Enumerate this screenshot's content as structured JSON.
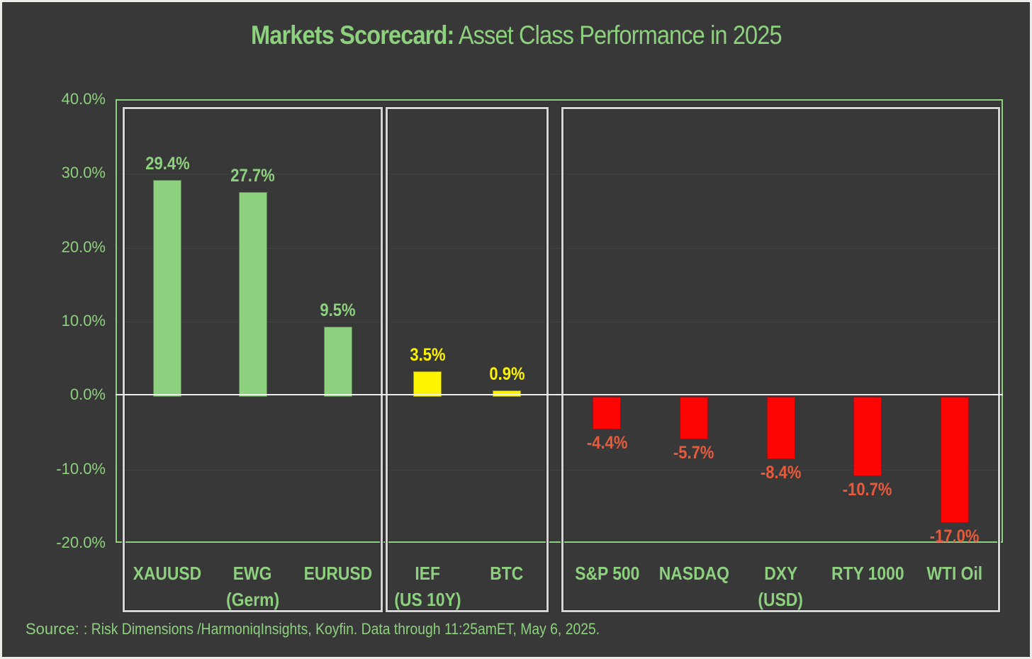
{
  "title": {
    "bold": "Markets Scorecard:",
    "rest": " Asset Class Performance in 2025"
  },
  "source": {
    "label": "Source: ",
    "text": ": Risk Dimensions /HarmoniqInsights, Koyfin. Data through 11:25amET, May 6, 2025."
  },
  "colors": {
    "background": "#383838",
    "green": "#8DD07E",
    "yellow": "#FDF400",
    "red": "#FE0505",
    "red_label": "#E75B3C",
    "panel_border": "#D4D4D4",
    "zero_line": "#EDEDED"
  },
  "chart_data": {
    "type": "bar",
    "title": "Markets Scorecard: Asset Class Performance in 2025",
    "xlabel": "",
    "ylabel": "",
    "ylim": [
      -20,
      40
    ],
    "grid": true,
    "legend": "none",
    "yticks": [
      {
        "value": 40,
        "label": "40.0%"
      },
      {
        "value": 30,
        "label": "30.0%"
      },
      {
        "value": 20,
        "label": "20.0%"
      },
      {
        "value": 10,
        "label": "10.0%"
      },
      {
        "value": 0,
        "label": "0.0%"
      },
      {
        "value": -10,
        "label": "-10.0%"
      },
      {
        "value": -20,
        "label": "-20.0%"
      }
    ],
    "groups": [
      {
        "name": "gold-intl-fx",
        "bar_color": "#8DD07E",
        "label_color": "#8DD07E",
        "categories": [
          {
            "line1": "XAUUSD",
            "line2": ""
          },
          {
            "line1": "EWG",
            "line2": "(Germ)"
          },
          {
            "line1": "EURUSD",
            "line2": ""
          }
        ],
        "values": [
          29.4,
          27.7,
          9.5
        ],
        "value_labels": [
          "29.4%",
          "27.7%",
          "9.5%"
        ]
      },
      {
        "name": "bonds-crypto",
        "bar_color": "#FDF400",
        "label_color": "#FDF400",
        "categories": [
          {
            "line1": "IEF",
            "line2": "(US 10Y)"
          },
          {
            "line1": "BTC",
            "line2": ""
          }
        ],
        "values": [
          3.5,
          0.9
        ],
        "value_labels": [
          "3.5%",
          "0.9%"
        ]
      },
      {
        "name": "us-equities-dollar-oil",
        "bar_color": "#FE0505",
        "label_color": "#E75B3C",
        "categories": [
          {
            "line1": "S&P 500",
            "line2": ""
          },
          {
            "line1": "NASDAQ",
            "line2": ""
          },
          {
            "line1": "DXY",
            "line2": "(USD)"
          },
          {
            "line1": "RTY 1000",
            "line2": ""
          },
          {
            "line1": "WTI Oil",
            "line2": ""
          }
        ],
        "values": [
          -4.4,
          -5.7,
          -8.4,
          -10.7,
          -17.0
        ],
        "value_labels": [
          "-4.4%",
          "-5.7%",
          "-8.4%",
          "-10.7%",
          "-17.0%"
        ]
      }
    ]
  }
}
